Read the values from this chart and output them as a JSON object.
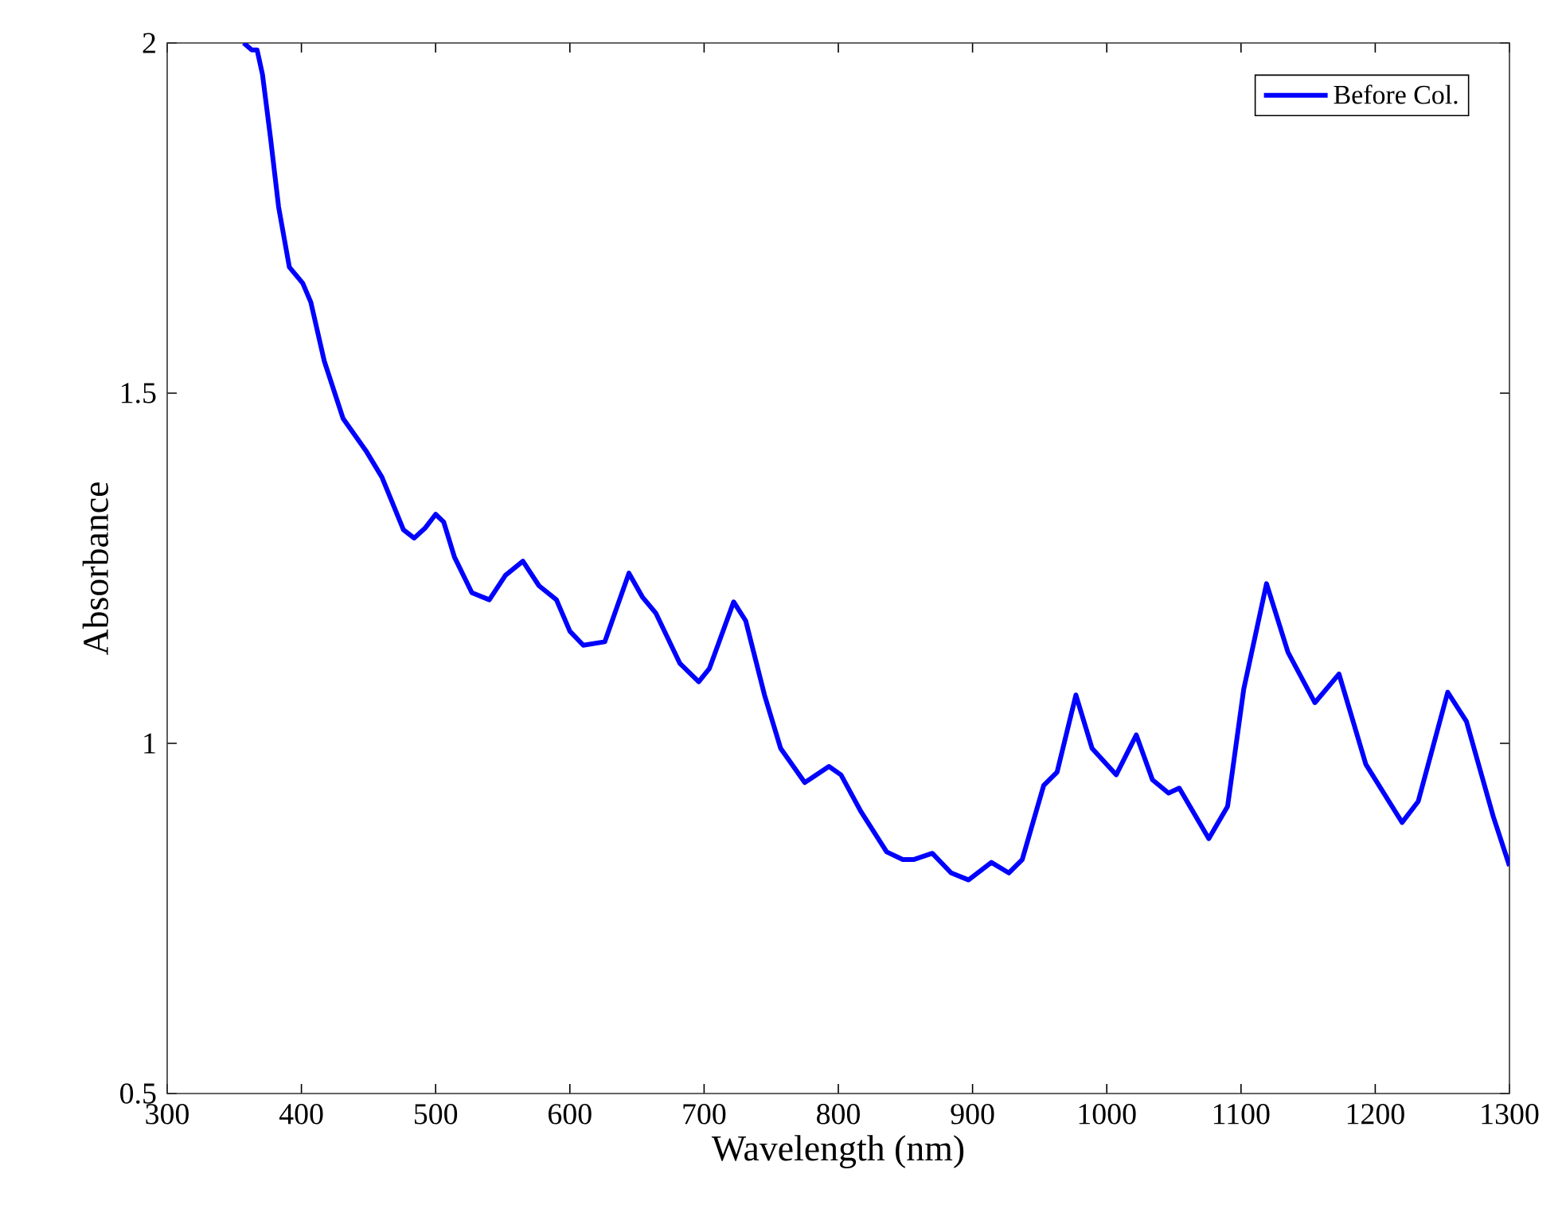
{
  "chart_data": {
    "type": "line",
    "xlabel": "Wavelength (nm)",
    "ylabel": "Absorbance",
    "xlim": [
      300,
      1300
    ],
    "xticks": [
      300,
      400,
      500,
      600,
      700,
      800,
      900,
      1000,
      1100,
      1200,
      1300
    ],
    "ylim": [
      0.5,
      2
    ],
    "yticks": [
      0.5,
      1,
      1.5,
      2
    ],
    "grid": false,
    "legend": "top right",
    "line_style": "solid",
    "series": [
      {
        "name": "Before Col.",
        "color": "#0000ff",
        "x": [
          357,
          363,
          367,
          371,
          377,
          383,
          391,
          401,
          407,
          417,
          431,
          448,
          460,
          476,
          484,
          492,
          500,
          506,
          514,
          527,
          540,
          552,
          565,
          577,
          590,
          600,
          610,
          626,
          644,
          654,
          664,
          682,
          696,
          704,
          722,
          731,
          745,
          757,
          775,
          793,
          802,
          817,
          836,
          848,
          856,
          870,
          884,
          897,
          914,
          927,
          937,
          953,
          963,
          977,
          989,
          1007,
          1022,
          1034,
          1046,
          1054,
          1076,
          1090,
          1102,
          1119,
          1135,
          1155,
          1173,
          1193,
          1220,
          1232,
          1254,
          1268,
          1288,
          1300
        ],
        "values": [
          2.0,
          1.99,
          1.99,
          1.955,
          1.864,
          1.766,
          1.68,
          1.657,
          1.63,
          1.546,
          1.464,
          1.418,
          1.38,
          1.305,
          1.293,
          1.307,
          1.327,
          1.316,
          1.266,
          1.215,
          1.205,
          1.24,
          1.26,
          1.225,
          1.205,
          1.16,
          1.14,
          1.145,
          1.243,
          1.209,
          1.186,
          1.114,
          1.088,
          1.107,
          1.202,
          1.175,
          1.069,
          0.993,
          0.944,
          0.967,
          0.955,
          0.902,
          0.845,
          0.834,
          0.834,
          0.843,
          0.815,
          0.805,
          0.83,
          0.815,
          0.834,
          0.94,
          0.959,
          1.069,
          0.993,
          0.955,
          1.012,
          0.948,
          0.929,
          0.936,
          0.864,
          0.91,
          1.077,
          1.228,
          1.13,
          1.058,
          1.099,
          0.97,
          0.887,
          0.917,
          1.073,
          1.031,
          0.895,
          0.825
        ]
      }
    ]
  }
}
